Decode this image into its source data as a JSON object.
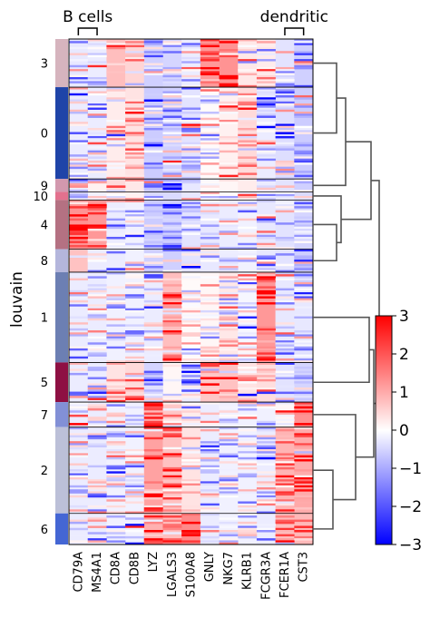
{
  "chart_data": {
    "type": "heatmap",
    "title": "",
    "xlabel": "",
    "ylabel": "louvain",
    "genes": [
      "CD79A",
      "MS4A1",
      "CD8A",
      "CD8B",
      "LYZ",
      "LGALS3",
      "S100A8",
      "GNLY",
      "NKG7",
      "KLRB1",
      "FCGR3A",
      "FCER1A",
      "CST3"
    ],
    "gene_groups": [
      {
        "label": "B cells",
        "start_gene": "CD79A",
        "end_gene": "MS4A1"
      },
      {
        "label": "dendritic",
        "start_gene": "FCER1A",
        "end_gene": "CST3"
      }
    ],
    "clusters": [
      {
        "name": "3",
        "cells": 96,
        "color": "#d6b4be",
        "mean_expression": [
          -0.5,
          -0.4,
          1.4,
          0.9,
          -1.0,
          -0.9,
          -0.4,
          2.2,
          2.3,
          0.5,
          0.4,
          -0.6,
          -1.0
        ]
      },
      {
        "name": "0",
        "cells": 183,
        "color": "#1f44a8",
        "mean_expression": [
          -0.4,
          -0.4,
          0.4,
          0.6,
          -1.1,
          -1.0,
          -0.6,
          0.1,
          0.3,
          0.8,
          -0.4,
          -0.7,
          -1.1
        ]
      },
      {
        "name": "9",
        "cells": 26,
        "color": "#d298ae",
        "mean_expression": [
          -0.4,
          0.3,
          0.8,
          0.5,
          -1.0,
          -0.9,
          -0.5,
          0.1,
          0.2,
          0.4,
          -0.4,
          -0.6,
          -1.0
        ]
      },
      {
        "name": "10",
        "cells": 16,
        "color": "#e3718e",
        "mean_expression": [
          -0.3,
          -0.3,
          0.4,
          0.3,
          -0.8,
          -0.8,
          -0.5,
          0.0,
          0.1,
          0.2,
          -0.3,
          -0.5,
          -0.8
        ]
      },
      {
        "name": "4",
        "cells": 98,
        "color": "#b47182",
        "mean_expression": [
          2.3,
          2.2,
          -0.4,
          -0.3,
          -1.1,
          -1.0,
          -0.6,
          -0.5,
          -0.4,
          -0.3,
          -0.5,
          -0.6,
          -0.9
        ]
      },
      {
        "name": "8",
        "cells": 46,
        "color": "#b4b6dc",
        "mean_expression": [
          1.3,
          -0.4,
          -0.4,
          -0.3,
          -1.0,
          -1.0,
          -0.6,
          -0.5,
          -0.4,
          -0.3,
          -0.5,
          -0.6,
          -1.0
        ]
      },
      {
        "name": "1",
        "cells": 180,
        "color": "#6c7fb3",
        "mean_expression": [
          -0.4,
          -0.4,
          -0.3,
          -0.3,
          -0.4,
          1.4,
          0.1,
          0.2,
          0.5,
          -0.2,
          2.2,
          -0.5,
          -0.5
        ]
      },
      {
        "name": "5",
        "cells": 79,
        "color": "#8e1043",
        "mean_expression": [
          -0.4,
          -0.4,
          0.6,
          0.8,
          -0.9,
          0.2,
          -0.4,
          1.2,
          1.3,
          0.6,
          0.7,
          -0.6,
          -0.9
        ]
      },
      {
        "name": "7",
        "cells": 50,
        "color": "#8290d6",
        "mean_expression": [
          -0.4,
          -0.4,
          -0.3,
          -0.3,
          1.8,
          1.2,
          0.4,
          -0.4,
          -0.3,
          -0.3,
          -0.3,
          0.2,
          2.3
        ]
      },
      {
        "name": "2",
        "cells": 172,
        "color": "#bcc0d8",
        "mean_expression": [
          -0.4,
          -0.4,
          -0.3,
          -0.3,
          2.0,
          1.3,
          0.6,
          -0.4,
          -0.3,
          -0.3,
          -0.4,
          1.6,
          1.8
        ]
      },
      {
        "name": "6",
        "cells": 62,
        "color": "#4466d4",
        "mean_expression": [
          -0.4,
          -0.4,
          -0.3,
          -0.3,
          1.7,
          1.4,
          2.5,
          -0.4,
          -0.3,
          -0.3,
          -0.4,
          1.4,
          1.5
        ]
      }
    ],
    "colorbar": {
      "colormap": "bwr",
      "vmin": -3,
      "vmax": 3,
      "ticks": [
        3,
        2,
        1,
        0,
        -1,
        -2,
        -3
      ]
    },
    "dendrogram": true
  }
}
